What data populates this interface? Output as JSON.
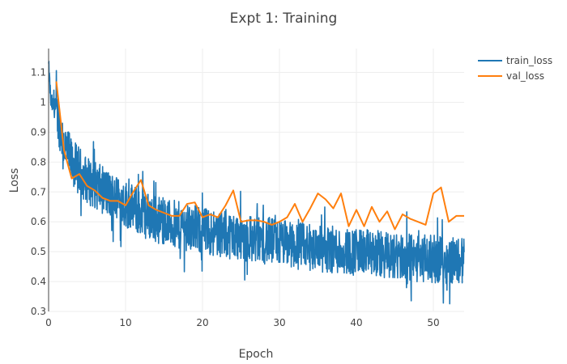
{
  "chart_data": {
    "type": "line",
    "title": "Expt 1: Training",
    "xlabel": "Epoch",
    "ylabel": "Loss",
    "xlim": [
      0,
      54
    ],
    "ylim": [
      0.3,
      1.18
    ],
    "xticks": [
      "0",
      "10",
      "20",
      "30",
      "40",
      "50"
    ],
    "yticks": [
      "0.3",
      "0.4",
      "0.5",
      "0.6",
      "0.7",
      "0.8",
      "0.9",
      "1",
      "1.1"
    ],
    "grid": true,
    "legend_position": "top-right",
    "series": [
      {
        "name": "train_loss",
        "color": "#1f77b4",
        "style": "noisy-dense",
        "trend": {
          "x": [
            0,
            0.3,
            1,
            2,
            3,
            5,
            8,
            10,
            12,
            15,
            20,
            25,
            30,
            35,
            40,
            45,
            50,
            54
          ],
          "y": [
            1.12,
            1.0,
            0.97,
            0.86,
            0.8,
            0.74,
            0.69,
            0.66,
            0.63,
            0.6,
            0.57,
            0.55,
            0.53,
            0.51,
            0.5,
            0.485,
            0.475,
            0.47
          ]
        },
        "noise_amplitude": 0.08
      },
      {
        "name": "val_loss",
        "color": "#ff7f0e",
        "x": [
          1,
          2,
          3,
          4,
          5,
          6,
          7,
          8,
          9,
          10,
          11,
          12,
          13,
          14,
          15,
          16,
          17,
          18,
          19,
          20,
          21,
          22,
          23,
          24,
          25,
          26,
          27,
          28,
          29,
          30,
          31,
          32,
          33,
          34,
          35,
          36,
          37,
          38,
          39,
          40,
          41,
          42,
          43,
          44,
          45,
          46,
          47,
          48,
          49,
          50,
          51,
          52,
          53,
          54
        ],
        "y": [
          1.07,
          0.84,
          0.745,
          0.76,
          0.72,
          0.705,
          0.68,
          0.67,
          0.67,
          0.655,
          0.7,
          0.74,
          0.655,
          0.64,
          0.63,
          0.62,
          0.62,
          0.66,
          0.665,
          0.615,
          0.625,
          0.615,
          0.655,
          0.705,
          0.6,
          0.605,
          0.605,
          0.6,
          0.59,
          0.6,
          0.615,
          0.66,
          0.6,
          0.645,
          0.695,
          0.675,
          0.645,
          0.695,
          0.585,
          0.64,
          0.585,
          0.65,
          0.6,
          0.635,
          0.575,
          0.625,
          0.61,
          0.6,
          0.59,
          0.695,
          0.715,
          0.6,
          0.62,
          0.62
        ]
      }
    ]
  }
}
